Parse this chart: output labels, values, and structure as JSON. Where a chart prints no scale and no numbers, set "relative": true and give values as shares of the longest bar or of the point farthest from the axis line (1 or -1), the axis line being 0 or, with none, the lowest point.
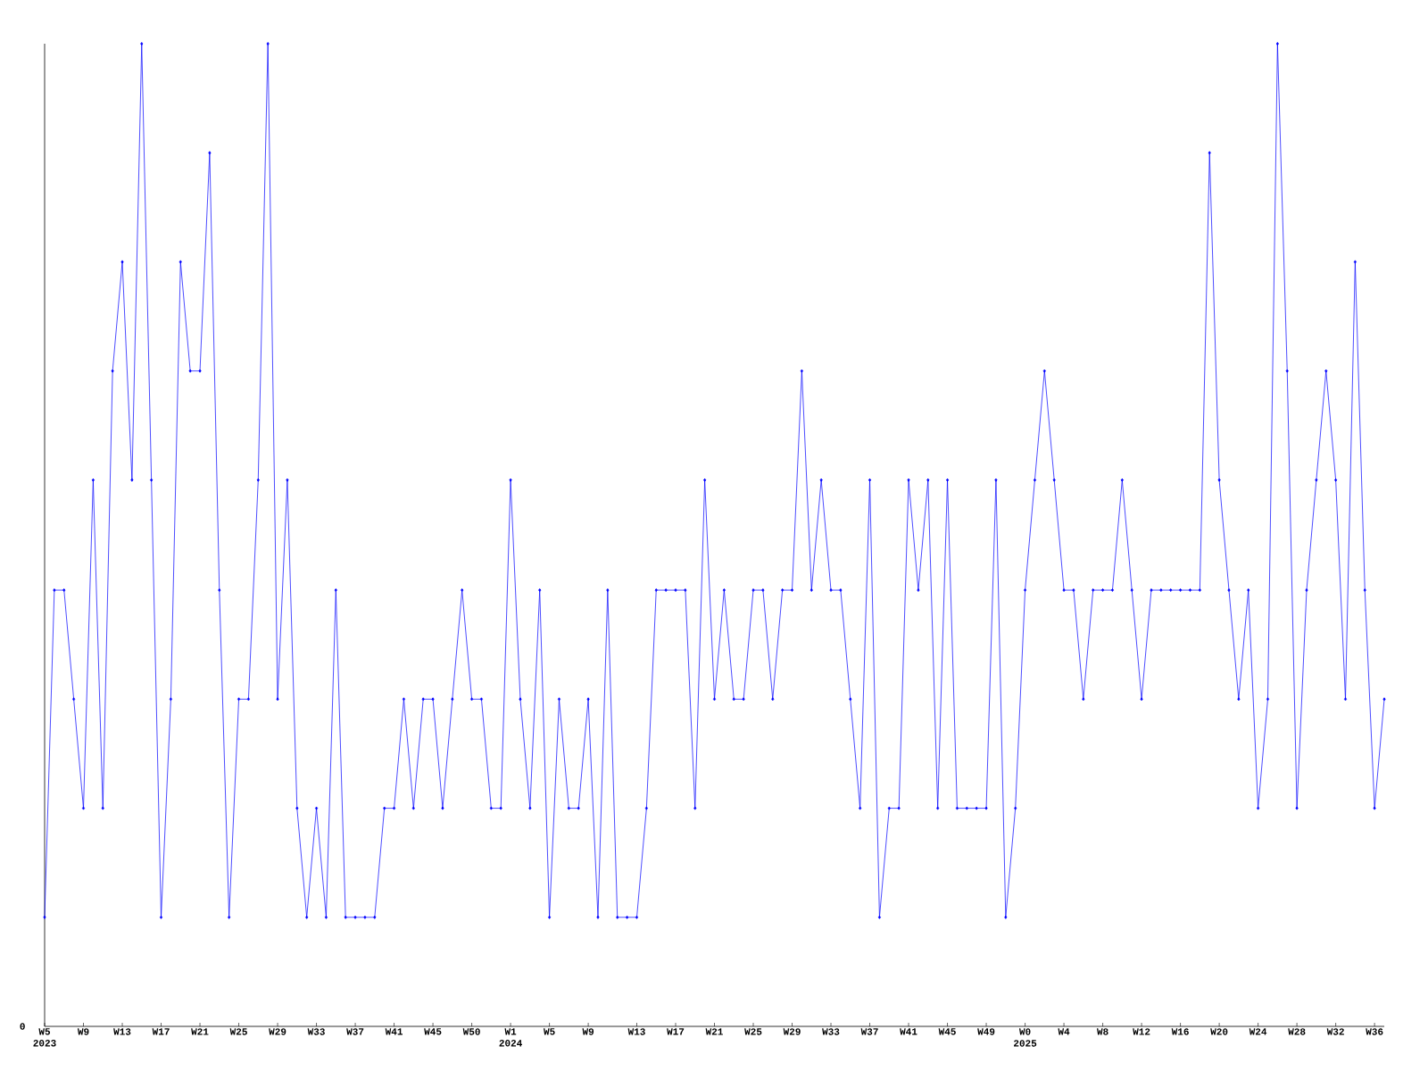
{
  "chart_data": {
    "type": "line",
    "relative": true,
    "marker": "diamond",
    "line_style": "solid",
    "annotations": [
      "0"
    ],
    "categories": [
      "W5 2023",
      null,
      null,
      null,
      "W9",
      null,
      null,
      null,
      "W13",
      null,
      null,
      null,
      "W17",
      null,
      null,
      null,
      "W21",
      null,
      null,
      null,
      "W25",
      null,
      null,
      null,
      "W29",
      null,
      null,
      null,
      "W33",
      null,
      null,
      null,
      "W37",
      null,
      null,
      null,
      "W41",
      null,
      null,
      null,
      "W45",
      null,
      null,
      null,
      "W50",
      null,
      null,
      null,
      "W1 2024",
      null,
      null,
      null,
      "W5",
      null,
      null,
      null,
      "W9",
      null,
      null,
      null,
      null,
      "W13",
      null,
      null,
      null,
      "W17",
      null,
      null,
      null,
      "W21",
      null,
      null,
      null,
      "W25",
      null,
      null,
      null,
      "W29",
      null,
      null,
      null,
      "W33",
      null,
      null,
      null,
      "W37",
      null,
      null,
      null,
      "W41",
      null,
      null,
      null,
      "W45",
      null,
      null,
      null,
      "W49",
      null,
      null,
      null,
      "W0 2025",
      null,
      null,
      null,
      "W4",
      null,
      null,
      null,
      "W8",
      null,
      null,
      null,
      "W12",
      null,
      null,
      null,
      "W16",
      null,
      null,
      null,
      "W20",
      null,
      null,
      null,
      "W24",
      null,
      null,
      null,
      "W28",
      null,
      null,
      null,
      "W32",
      null,
      null,
      null,
      "W36",
      null
    ],
    "series": [
      {
        "color": "#0000ff",
        "values": [
          0.111,
          0.444,
          0.444,
          0.333,
          0.222,
          0.556,
          0.222,
          0.667,
          0.778,
          0.556,
          1,
          0.556,
          0.111,
          0.333,
          0.778,
          0.667,
          0.667,
          0.889,
          0.444,
          0.111,
          0.333,
          0.333,
          0.556,
          1,
          0.333,
          0.556,
          0.222,
          0.111,
          0.222,
          0.111,
          0.444,
          0.111,
          0.111,
          0.111,
          0.111,
          0.222,
          0.222,
          0.333,
          0.222,
          0.333,
          0.333,
          0.222,
          0.333,
          0.444,
          0.333,
          0.333,
          0.222,
          0.222,
          0.556,
          0.333,
          0.222,
          0.444,
          0.111,
          0.333,
          0.222,
          0.222,
          0.333,
          0.111,
          0.444,
          0.111,
          0.111,
          0.111,
          0.222,
          0.444,
          0.444,
          0.444,
          0.444,
          0.222,
          0.556,
          0.333,
          0.444,
          0.333,
          0.333,
          0.444,
          0.444,
          0.333,
          0.444,
          0.444,
          0.667,
          0.444,
          0.556,
          0.444,
          0.444,
          0.333,
          0.222,
          0.556,
          0.111,
          0.222,
          0.222,
          0.556,
          0.444,
          0.556,
          0.222,
          0.556,
          0.222,
          0.222,
          0.222,
          0.222,
          0.556,
          0.111,
          0.222,
          0.444,
          0.556,
          0.667,
          0.556,
          0.444,
          0.444,
          0.333,
          0.444,
          0.444,
          0.444,
          0.556,
          0.444,
          0.333,
          0.444,
          0.444,
          0.444,
          0.444,
          0.444,
          0.444,
          0.889,
          0.556,
          0.444,
          0.333,
          0.444,
          0.222,
          0.333,
          1,
          0.667,
          0.222,
          0.444,
          0.556,
          0.667,
          0.556,
          0.333,
          0.778,
          0.444,
          0.222,
          0.333
        ]
      }
    ]
  }
}
